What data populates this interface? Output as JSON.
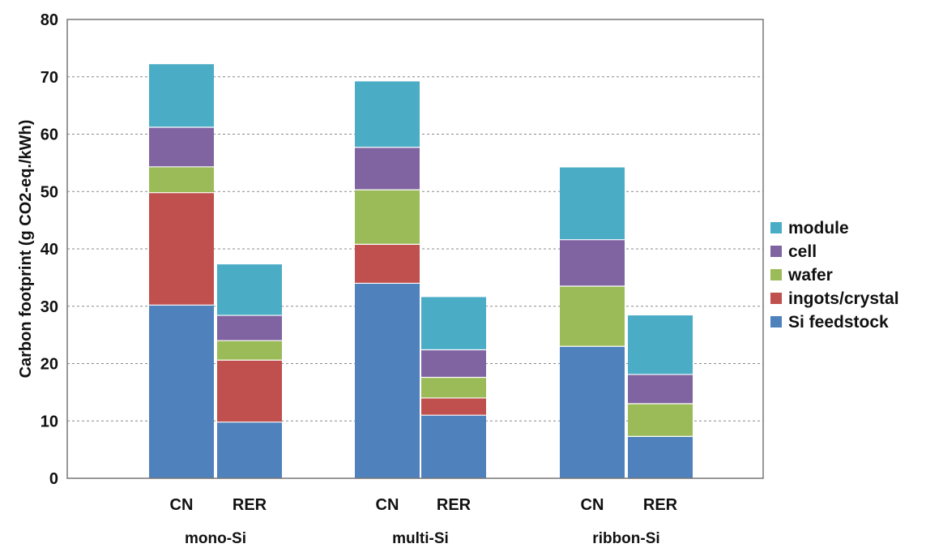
{
  "chart_data": {
    "type": "bar",
    "stacked": true,
    "ylabel": "Carbon footprint (g CO2-eq./kWh)",
    "ylim": [
      0,
      80
    ],
    "yticks": [
      0,
      10,
      20,
      30,
      40,
      50,
      60,
      70,
      80
    ],
    "grid": true,
    "legend_position": "right",
    "groups": [
      "mono-Si",
      "multi-Si",
      "ribbon-Si"
    ],
    "categories": [
      "CN",
      "RER",
      "CN",
      "RER",
      "CN",
      "RER"
    ],
    "series": [
      {
        "name": "Si feedstock",
        "color": "#4f81bd",
        "values": [
          30.2,
          9.8,
          34.0,
          11.0,
          23.0,
          7.3
        ]
      },
      {
        "name": "ingots/crystal",
        "color": "#c0504d",
        "values": [
          19.6,
          10.8,
          6.8,
          3.0,
          0.0,
          0.0
        ]
      },
      {
        "name": "wafer",
        "color": "#9bbb59",
        "values": [
          4.5,
          3.4,
          9.5,
          3.6,
          10.5,
          5.7
        ]
      },
      {
        "name": "cell",
        "color": "#8064a2",
        "values": [
          6.9,
          4.4,
          7.4,
          4.8,
          8.1,
          5.1
        ]
      },
      {
        "name": "module",
        "color": "#4bacc6",
        "values": [
          11.0,
          8.9,
          11.5,
          9.2,
          12.6,
          10.3
        ]
      }
    ],
    "legend_order": [
      "module",
      "cell",
      "wafer",
      "ingots/crystal",
      "Si feedstock"
    ]
  }
}
